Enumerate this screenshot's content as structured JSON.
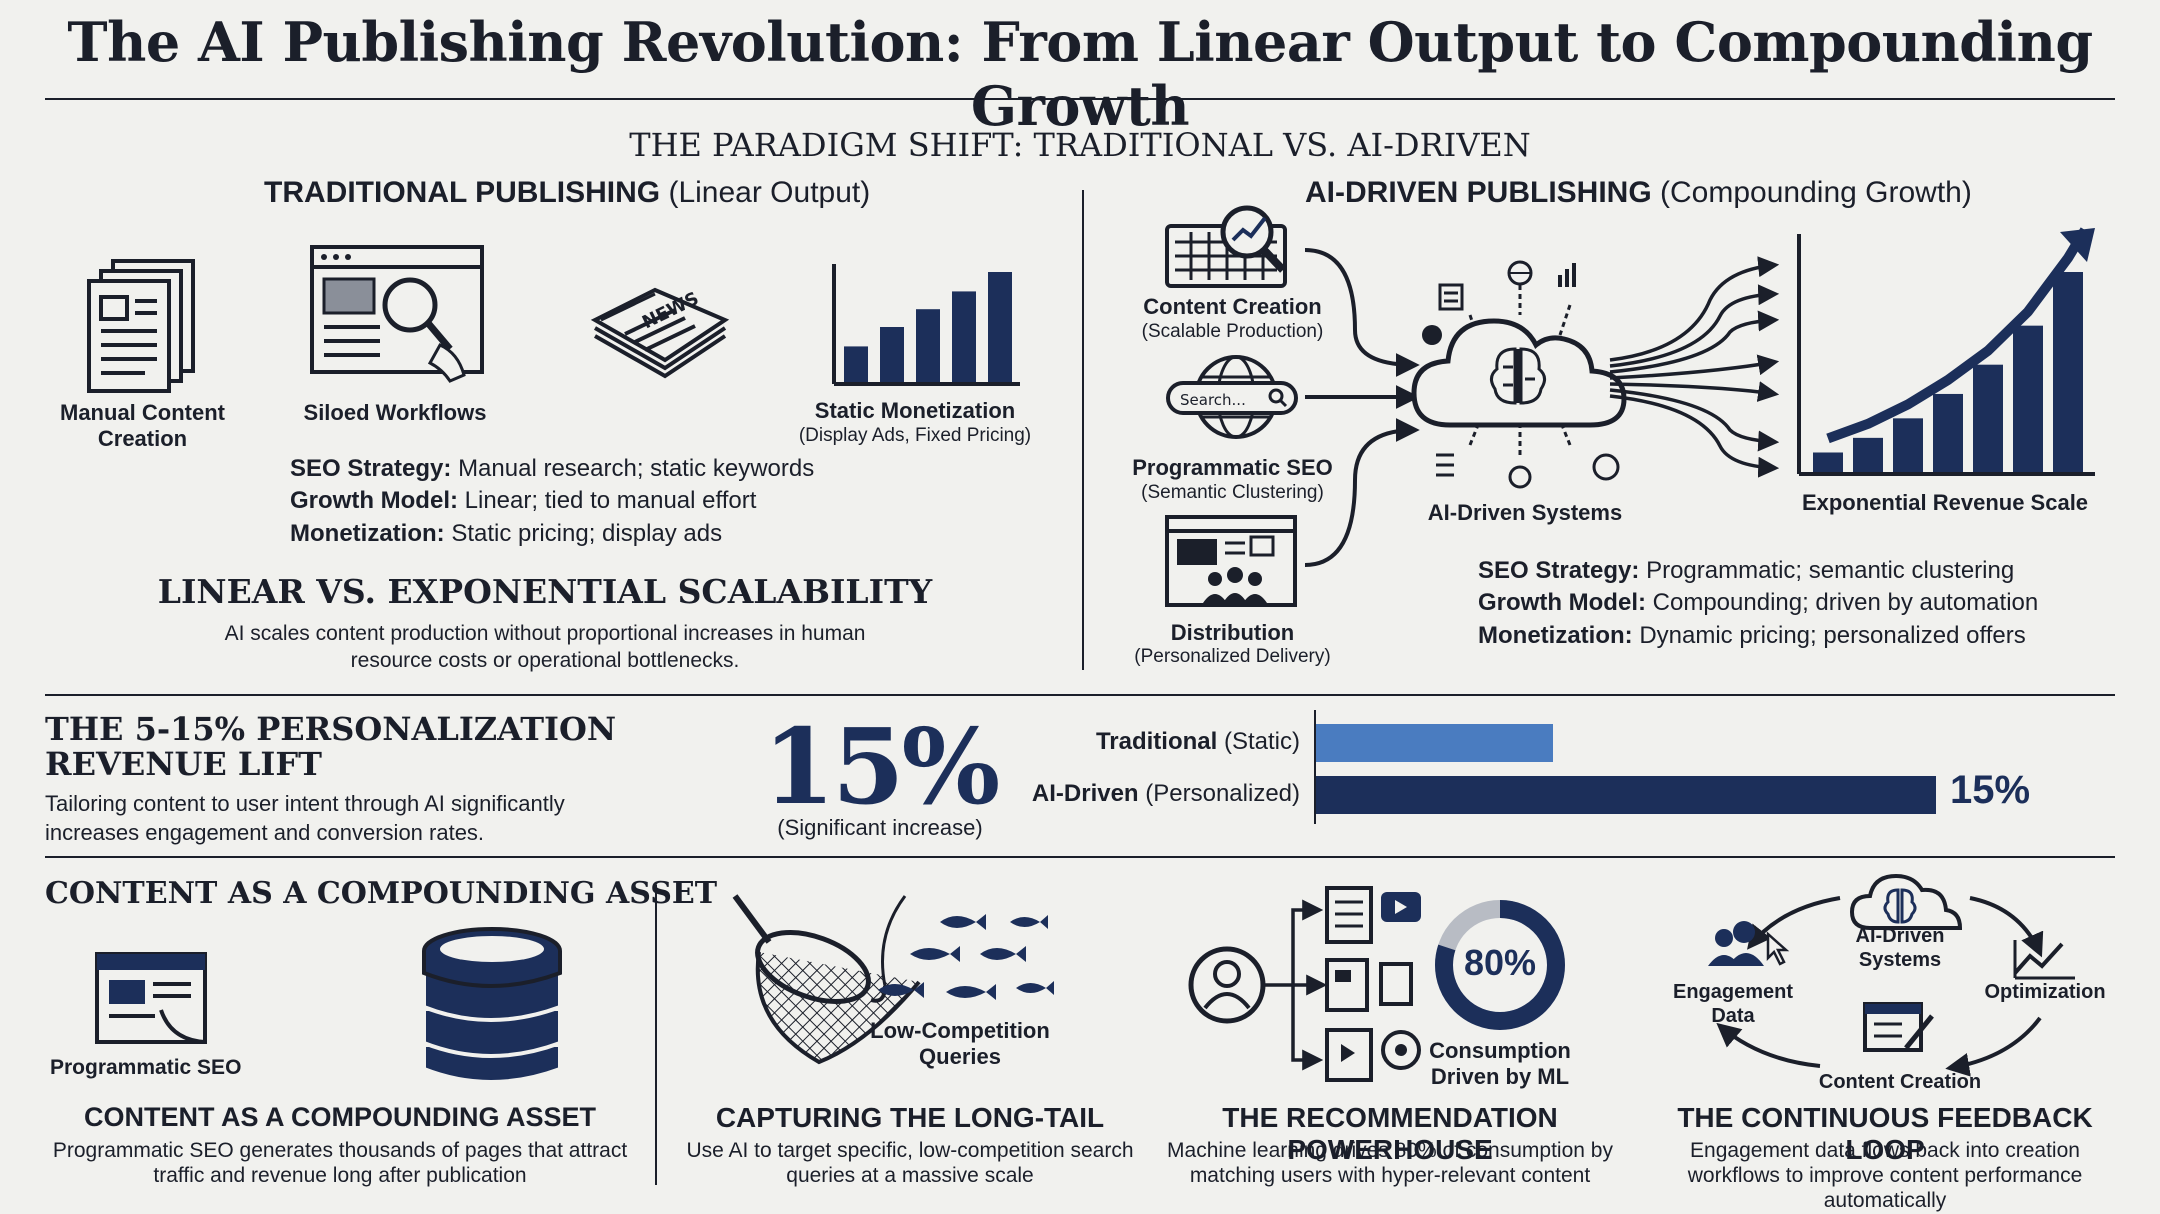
{
  "title": "The AI Publishing Revolution: From Linear Output to Compounding Growth",
  "paradigm": {
    "heading": "THE PARADIGM SHIFT: TRADITIONAL VS. AI-DRIVEN",
    "traditional": {
      "head_bold": "TRADITIONAL PUBLISHING",
      "head_rest": "(Linear Output)",
      "icons": [
        {
          "label": "Manual Content\nCreation"
        },
        {
          "label": "Siloed Workflows"
        },
        {
          "label": "Static Monetization",
          "sub": "(Display Ads, Fixed Pricing)"
        }
      ],
      "newspaper_text": "NEWS",
      "facts": [
        {
          "key": "SEO Strategy:",
          "value": "Manual research; static keywords"
        },
        {
          "key": "Growth Model:",
          "value": "Linear; tied to manual effort"
        },
        {
          "key": "Monetization:",
          "value": "Static pricing; display ads"
        }
      ],
      "bars": [
        22,
        34,
        45,
        56,
        68
      ]
    },
    "ai": {
      "head_bold": "AI-DRIVEN PUBLISHING",
      "head_rest": "(Compounding Growth)",
      "inputs": [
        {
          "label": "Content Creation",
          "sub": "(Scalable Production)"
        },
        {
          "label": "Programmatic SEO",
          "sub": "(Semantic Clustering)"
        },
        {
          "label": "Distribution",
          "sub": "(Personalized Delivery)"
        }
      ],
      "search_text": "Search...",
      "hub_label": "AI-Driven Systems",
      "revenue_label": "Exponential Revenue Scale",
      "bars": [
        8,
        14,
        22,
        32,
        44,
        60,
        82
      ],
      "facts": [
        {
          "key": "SEO Strategy:",
          "value": "Programmatic; semantic clustering"
        },
        {
          "key": "Growth Model:",
          "value": "Compounding; driven by automation"
        },
        {
          "key": "Monetization:",
          "value": "Dynamic pricing; personalized offers"
        }
      ]
    },
    "scalability": {
      "heading": "LINEAR VS. EXPONENTIAL SCALABILITY",
      "body": "AI scales content production without proportional increases in human resource costs or operational bottlenecks."
    }
  },
  "personalization": {
    "heading": "THE 5-15% PERSONALIZATION REVENUE LIFT",
    "body": "Tailoring content to user intent through AI significantly increases engagement and conversion rates.",
    "big_stat": "15%",
    "big_stat_sub": "(Significant increase)",
    "chart_data": {
      "type": "bar",
      "orientation": "horizontal",
      "categories": [
        {
          "bold": "Traditional",
          "rest": "(Static)"
        },
        {
          "bold": "AI-Driven",
          "rest": "(Personalized)"
        }
      ],
      "values": [
        100,
        115
      ],
      "value_labels": [
        "",
        "15%"
      ],
      "colors": [
        "#4a7cc0",
        "#1c2f5a"
      ]
    }
  },
  "bottom": {
    "heading": "CONTENT AS A COMPOUNDING ASSET",
    "cards": [
      {
        "title": "CONTENT AS A COMPOUNDING ASSET",
        "body": "Programmatic SEO generates thousands of pages that attract traffic and revenue long after publication",
        "icon_label": "Programmatic SEO"
      },
      {
        "title": "CAPTURING THE LONG-TAIL",
        "body": "Use AI to target specific, low-competition search queries at a massive scale",
        "icon_label": "Low-Competition\nQueries"
      },
      {
        "title": "THE RECOMMENDATION POWERHOUSE",
        "body": "Machine learning drives 80% of consumption by matching users with hyper-relevant content",
        "icon_label": "Consumption\nDriven by ML",
        "donut_value": "80%",
        "donut_fraction": 0.8
      },
      {
        "title": "THE CONTINUOUS FEEDBACK LOOP",
        "body": "Engagement data flows back into creation workflows to improve content performance automatically",
        "loop": {
          "top": "AI-Driven\nSystems",
          "right": "Optimization",
          "bottom": "Content Creation",
          "left": "Engagement\nData"
        }
      }
    ]
  },
  "colors": {
    "navy": "#1c2f5a",
    "blue": "#4a7cc0",
    "ink": "#1b1f2a",
    "bg": "#f1f1ee"
  }
}
